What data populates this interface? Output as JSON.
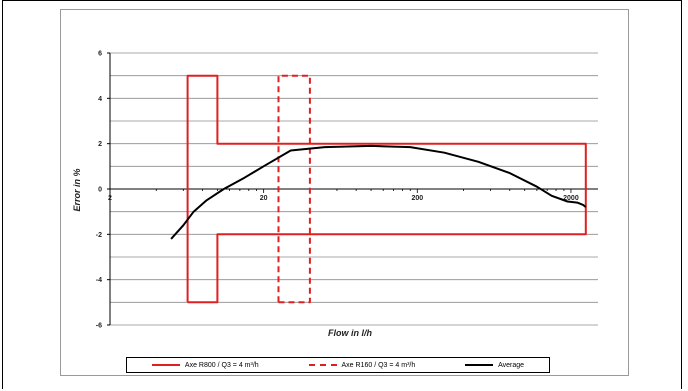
{
  "chart_data": {
    "type": "line",
    "title": "",
    "xlabel": "Flow in l/h",
    "ylabel": "Error in %",
    "x_scale": "log",
    "xlim": [
      2,
      3000
    ],
    "ylim": [
      -6,
      6
    ],
    "x_ticks": [
      2,
      20,
      200,
      2000
    ],
    "x_tick_labels": [
      "2",
      "20",
      "200",
      "2000"
    ],
    "y_ticks": [
      -6,
      -4,
      -2,
      0,
      2,
      4,
      6
    ],
    "y_tick_labels": [
      "-6",
      "-4",
      "-2",
      "0",
      "2",
      "4",
      "6"
    ],
    "grid": "horizontal",
    "legend_position": "bottom",
    "series": [
      {
        "name": "Axe R800 / Q3 = 4 m³/h",
        "color": "#e02020",
        "style": "solid",
        "points": [
          [
            6.4,
            -5
          ],
          [
            6.4,
            5
          ],
          [
            10,
            5
          ],
          [
            10,
            2
          ],
          [
            2500,
            2
          ],
          [
            2500,
            -2
          ],
          [
            10,
            -2
          ],
          [
            10,
            -5
          ],
          [
            6.4,
            -5
          ]
        ]
      },
      {
        "name": "Axe R160 / Q3 = 4 m³/h",
        "color": "#e02020",
        "style": "dashed",
        "points": [
          [
            25,
            -5
          ],
          [
            25,
            5
          ],
          [
            40,
            5
          ],
          [
            40,
            -5
          ],
          [
            25,
            -5
          ]
        ]
      },
      {
        "name": "Average",
        "color": "#000000",
        "style": "solid",
        "points": [
          [
            5,
            -2.2
          ],
          [
            6,
            -1.6
          ],
          [
            7,
            -1.0
          ],
          [
            8.5,
            -0.5
          ],
          [
            11,
            0.0
          ],
          [
            15,
            0.5
          ],
          [
            20,
            1.0
          ],
          [
            30,
            1.7
          ],
          [
            50,
            1.85
          ],
          [
            100,
            1.9
          ],
          [
            180,
            1.85
          ],
          [
            300,
            1.6
          ],
          [
            500,
            1.2
          ],
          [
            800,
            0.7
          ],
          [
            1200,
            0.1
          ],
          [
            1500,
            -0.3
          ],
          [
            1900,
            -0.55
          ],
          [
            2200,
            -0.6
          ],
          [
            2400,
            -0.7
          ],
          [
            2500,
            -0.8
          ]
        ]
      }
    ]
  }
}
